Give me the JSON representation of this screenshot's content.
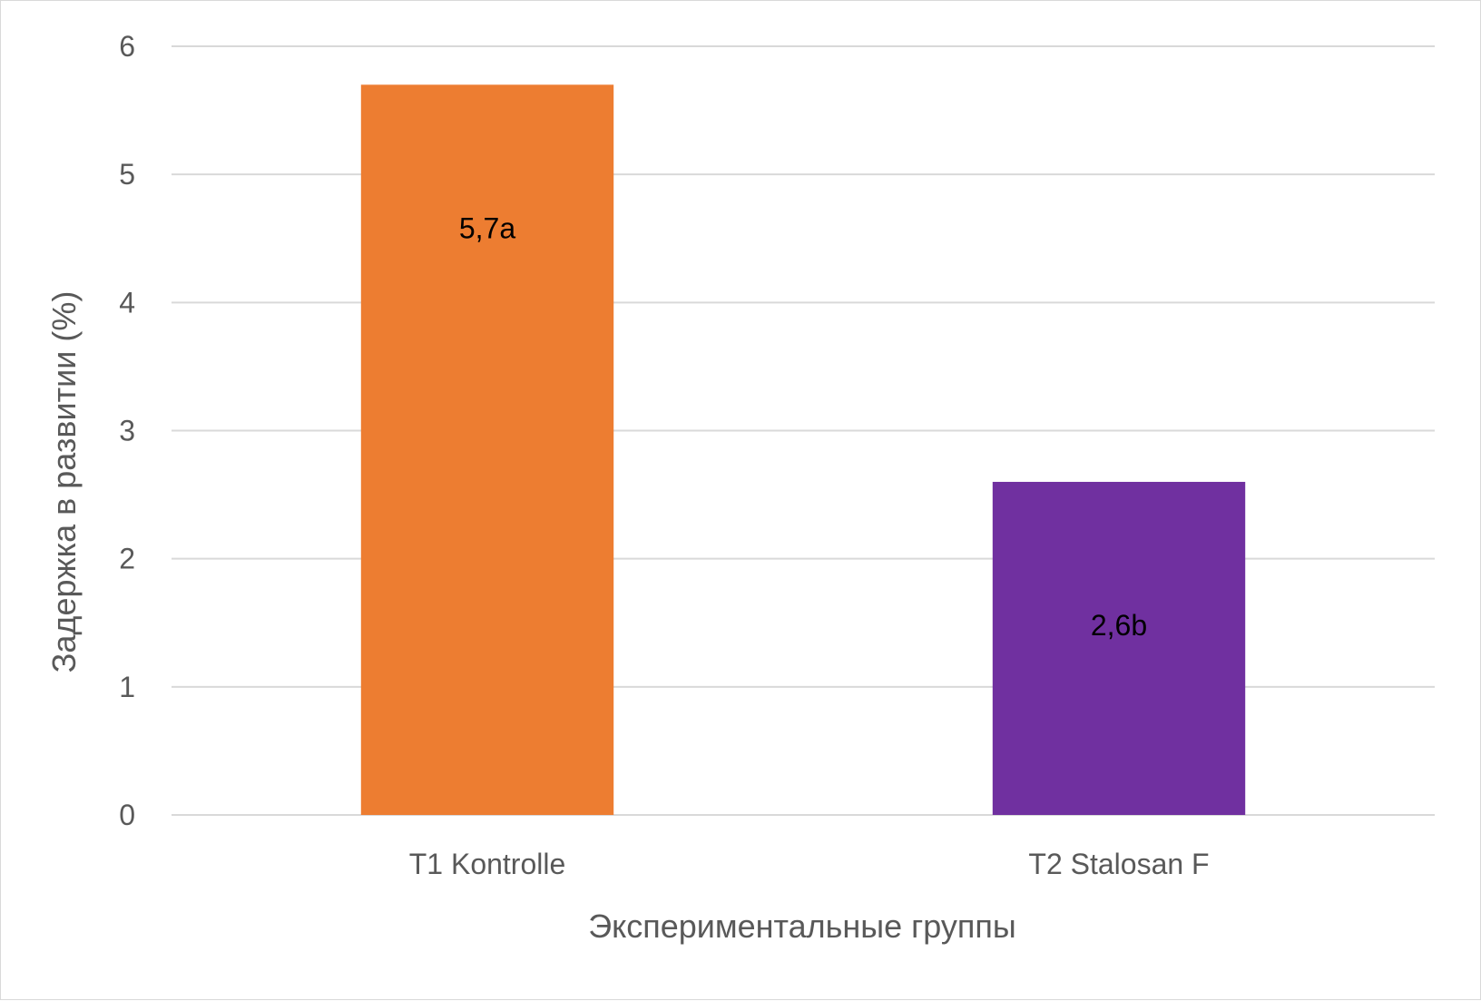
{
  "chart_data": {
    "type": "bar",
    "categories": [
      "T1 Kontrolle",
      "T2 Stalosan F"
    ],
    "values": [
      5.7,
      2.6
    ],
    "data_labels": [
      "5,7a",
      "2,6b"
    ],
    "bar_colors": [
      "#ED7D31",
      "#7030A0"
    ],
    "xlabel": "Экспериментальные группы",
    "ylabel": "Задержка в развитии (%)",
    "ylim": [
      0,
      6
    ],
    "yticks": [
      "0",
      "1",
      "2",
      "3",
      "4",
      "5",
      "6"
    ],
    "grid": true,
    "gridline_color": "#d9d9d9",
    "legend": "none"
  }
}
